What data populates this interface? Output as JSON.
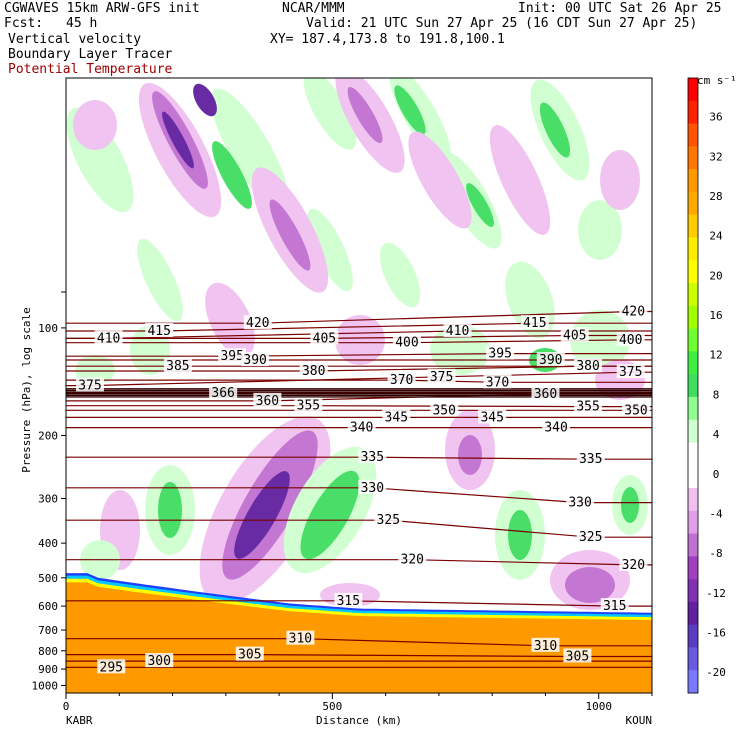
{
  "header": {
    "model": "CGWAVES 15km ARW-GFS init",
    "org": "NCAR/MMM",
    "init": "Init: 00 UTC Sat 26 Apr 25",
    "fcst_label": "Fcst:",
    "fcst_value": "45 h",
    "valid": "Valid: 21 UTC Sun 27 Apr 25 (16 CDT Sun 27 Apr 25)",
    "field1": "Vertical velocity",
    "field2": "Boundary Layer Tracer",
    "field3": "Potential Temperature",
    "xy": "XY= 187.4,173.8 to 191.8,100.1"
  },
  "colors": {
    "theta_contour": "#7a0000",
    "theta_label": "#8b0000",
    "orange_fill": "#ff9900",
    "bl_blue": "#2040ff",
    "bl_cyan": "#00c8ff",
    "bl_yellow": "#ffff00"
  },
  "chart_data": {
    "type": "cross-section",
    "ylabel": "Pressure (hPa), log scale",
    "xlabel": "Distance (km)",
    "x_ticks": [
      "0",
      "500",
      "1000"
    ],
    "x_tick_values": [
      0,
      500,
      1000
    ],
    "xlim": [
      0,
      1100
    ],
    "y_ticks": [
      "100",
      "200",
      "300",
      "400",
      "500",
      "600",
      "700",
      "800",
      "900",
      "1000"
    ],
    "y_tick_values": [
      100,
      200,
      300,
      400,
      500,
      600,
      700,
      800,
      900,
      1000
    ],
    "ylim": [
      1050,
      20
    ],
    "y_scale": "log",
    "endpoints": [
      "KABR",
      "KOUN"
    ],
    "colorbar": {
      "unit": "cm s⁻¹",
      "labels": [
        "36",
        "32",
        "28",
        "24",
        "20",
        "16",
        "12",
        "8",
        "4",
        "0",
        "-4",
        "-8",
        "-12",
        "-16",
        "-20"
      ],
      "levels": [
        36,
        32,
        28,
        24,
        20,
        16,
        12,
        8,
        4,
        0,
        -4,
        -8,
        -12,
        -16,
        -20
      ],
      "colors": [
        "#ff0000",
        "#ff2200",
        "#ff5500",
        "#ff7700",
        "#ff9900",
        "#ffaa00",
        "#ffcc00",
        "#ffee00",
        "#ffff00",
        "#ccff00",
        "#a0ff00",
        "#70ff30",
        "#40ee40",
        "#40dd60",
        "#90ff90",
        "#d0ffd0",
        "#ffffff",
        "#ffffff",
        "#f0c0f0",
        "#e0a0e8",
        "#c070d0",
        "#a040c0",
        "#8030b0",
        "#6020a0",
        "#5a3cc0",
        "#6a5ae0",
        "#7a7aff"
      ]
    },
    "theta_labels": [
      {
        "t": "410",
        "x": 80,
        "p": 107
      },
      {
        "t": "415",
        "x": 175,
        "p": 102
      },
      {
        "t": "420",
        "x": 360,
        "p": 97
      },
      {
        "t": "405",
        "x": 485,
        "p": 107
      },
      {
        "t": "410",
        "x": 735,
        "p": 102
      },
      {
        "t": "415",
        "x": 880,
        "p": 97
      },
      {
        "t": "420",
        "x": 1065,
        "p": 90
      },
      {
        "t": "405",
        "x": 955,
        "p": 105
      },
      {
        "t": "400",
        "x": 1060,
        "p": 108
      },
      {
        "t": "400",
        "x": 640,
        "p": 110
      },
      {
        "t": "395",
        "x": 312,
        "p": 120
      },
      {
        "t": "390",
        "x": 355,
        "p": 123
      },
      {
        "t": "395",
        "x": 815,
        "p": 118
      },
      {
        "t": "390",
        "x": 910,
        "p": 123
      },
      {
        "t": "385",
        "x": 210,
        "p": 128
      },
      {
        "t": "380",
        "x": 465,
        "p": 132
      },
      {
        "t": "380",
        "x": 980,
        "p": 128
      },
      {
        "t": "375",
        "x": 1060,
        "p": 133
      },
      {
        "t": "375",
        "x": 45,
        "p": 145
      },
      {
        "t": "370",
        "x": 630,
        "p": 140
      },
      {
        "t": "375",
        "x": 705,
        "p": 137
      },
      {
        "t": "370",
        "x": 810,
        "p": 142
      },
      {
        "t": "366",
        "x": 295,
        "p": 152
      },
      {
        "t": "360",
        "x": 378,
        "p": 160
      },
      {
        "t": "360",
        "x": 900,
        "p": 153
      },
      {
        "t": "355",
        "x": 455,
        "p": 165
      },
      {
        "t": "355",
        "x": 980,
        "p": 166
      },
      {
        "t": "350",
        "x": 710,
        "p": 170
      },
      {
        "t": "350",
        "x": 1070,
        "p": 170
      },
      {
        "t": "345",
        "x": 620,
        "p": 178
      },
      {
        "t": "345",
        "x": 800,
        "p": 178
      },
      {
        "t": "340",
        "x": 555,
        "p": 190
      },
      {
        "t": "340",
        "x": 920,
        "p": 190
      },
      {
        "t": "335",
        "x": 575,
        "p": 230
      },
      {
        "t": "335",
        "x": 985,
        "p": 233
      },
      {
        "t": "330",
        "x": 575,
        "p": 280
      },
      {
        "t": "330",
        "x": 965,
        "p": 308
      },
      {
        "t": "325",
        "x": 605,
        "p": 345
      },
      {
        "t": "325",
        "x": 985,
        "p": 385
      },
      {
        "t": "320",
        "x": 650,
        "p": 445
      },
      {
        "t": "320",
        "x": 1065,
        "p": 460
      },
      {
        "t": "315",
        "x": 530,
        "p": 580
      },
      {
        "t": "315",
        "x": 1030,
        "p": 600
      },
      {
        "t": "310",
        "x": 440,
        "p": 740
      },
      {
        "t": "310",
        "x": 900,
        "p": 775
      },
      {
        "t": "305",
        "x": 345,
        "p": 820
      },
      {
        "t": "305",
        "x": 960,
        "p": 830
      },
      {
        "t": "300",
        "x": 175,
        "p": 855
      },
      {
        "t": "295",
        "x": 85,
        "p": 890
      }
    ]
  }
}
